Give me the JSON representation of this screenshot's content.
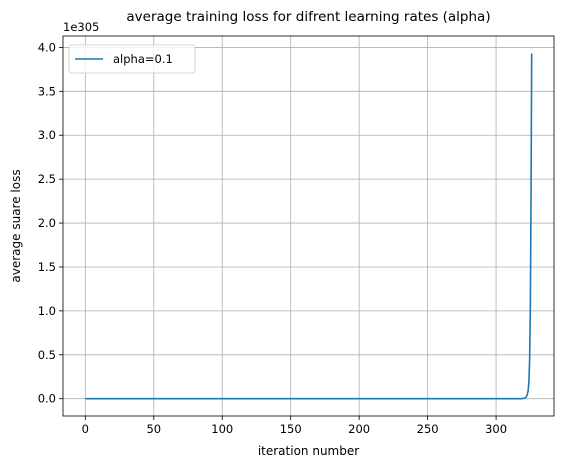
{
  "chart_data": {
    "type": "line",
    "title": "average training loss for difrent learning rates (alpha)",
    "xlabel": "iteration number",
    "ylabel": "average suare loss",
    "y_offset_text": "1e305",
    "xlim": [
      -16.3,
      342.3
    ],
    "ylim": [
      -0.197,
      4.13
    ],
    "x_ticks": [
      0,
      50,
      100,
      150,
      200,
      250,
      300
    ],
    "x_tick_labels": [
      "0",
      "50",
      "100",
      "150",
      "200",
      "250",
      "300"
    ],
    "y_ticks": [
      0.0,
      0.5,
      1.0,
      1.5,
      2.0,
      2.5,
      3.0,
      3.5,
      4.0
    ],
    "y_tick_labels": [
      "0.0",
      "0.5",
      "1.0",
      "1.5",
      "2.0",
      "2.5",
      "3.0",
      "3.5",
      "4.0"
    ],
    "grid": true,
    "legend_position": "top-left",
    "color": "#1f77b4",
    "series": [
      {
        "name": "alpha=0.1",
        "x": [
          0,
          50,
          100,
          150,
          200,
          250,
          300,
          318,
          320,
          321,
          322,
          322.5,
          323,
          323.5,
          324,
          324.5,
          325,
          325.5,
          326
        ],
        "y": [
          0,
          0,
          0,
          0,
          0,
          0,
          0,
          0.0005,
          0.003,
          0.008,
          0.02,
          0.035,
          0.06,
          0.1,
          0.2,
          0.45,
          1.0,
          2.2,
          3.93
        ]
      }
    ]
  }
}
